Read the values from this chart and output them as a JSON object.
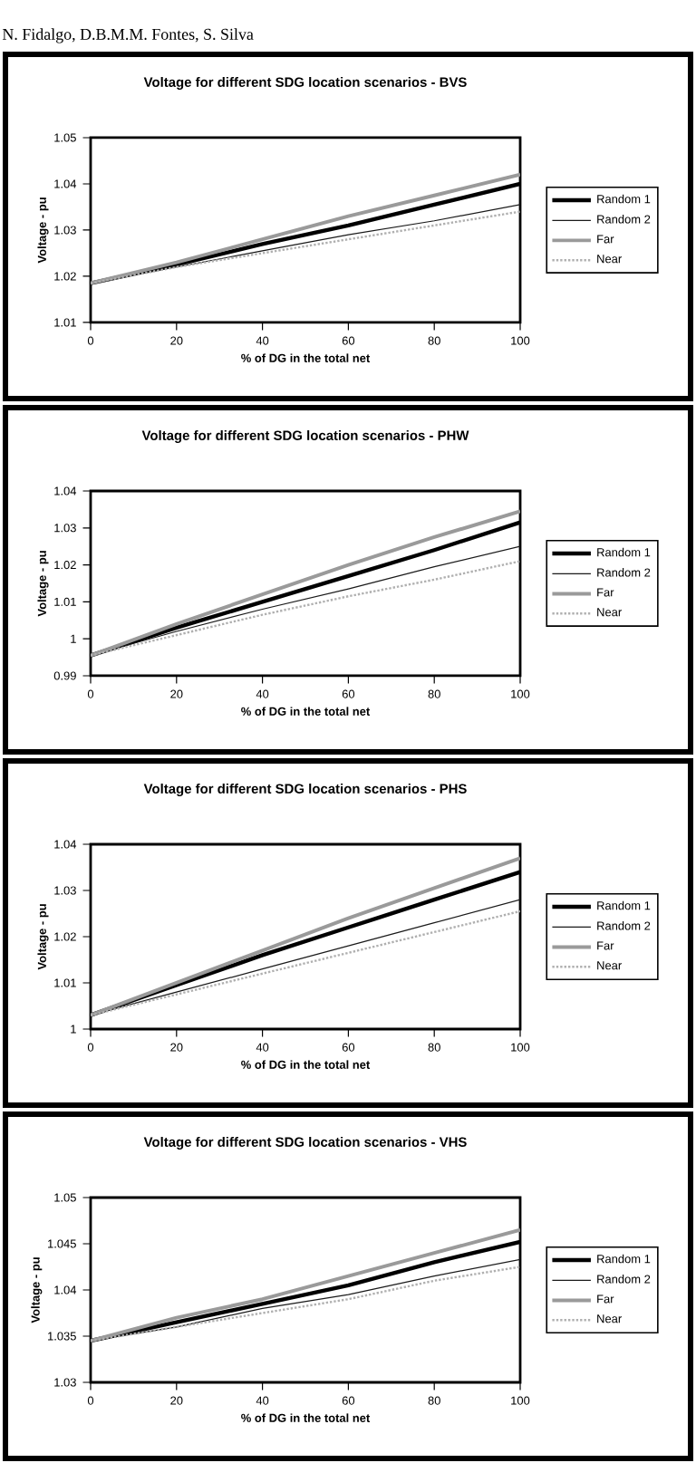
{
  "chart_data": [
    {
      "type": "line",
      "title": "Voltage for different SDG location scenarios - BVS",
      "xlabel": "% of DG in the total net",
      "ylabel": "Voltage - pu",
      "annotations": [
        "N. Fidalgo, D.B.M.M. Fontes, S. Silva"
      ],
      "x": [
        0,
        20,
        40,
        60,
        80,
        100
      ],
      "xlim": [
        0,
        100
      ],
      "xticks": [
        0,
        20,
        40,
        60,
        80,
        100
      ],
      "ylim": [
        1.01,
        1.05
      ],
      "yticks": [
        1.01,
        1.02,
        1.03,
        1.04,
        1.05
      ],
      "legend": "right",
      "series": [
        {
          "name": "Random 1",
          "color": "#000000",
          "values": [
            1.0185,
            1.0225,
            1.027,
            1.031,
            1.0355,
            1.04
          ]
        },
        {
          "name": "Random 2",
          "color": "#1a1a1a",
          "values": [
            1.0185,
            1.022,
            1.0255,
            1.029,
            1.032,
            1.0355
          ]
        },
        {
          "name": "Far",
          "color": "#9a9a9a",
          "values": [
            1.0185,
            1.023,
            1.028,
            1.033,
            1.0375,
            1.042
          ]
        },
        {
          "name": "Near",
          "color": "#b0b0b0",
          "line_style": "dotted",
          "values": [
            1.0185,
            1.022,
            1.025,
            1.028,
            1.031,
            1.034
          ]
        }
      ]
    },
    {
      "type": "line",
      "title": "Voltage for different SDG location scenarios - PHW",
      "xlabel": "% of DG in the total net",
      "ylabel": "Voltage - pu",
      "x": [
        0,
        20,
        40,
        60,
        80,
        100
      ],
      "xlim": [
        0,
        100
      ],
      "xticks": [
        0,
        20,
        40,
        60,
        80,
        100
      ],
      "ylim": [
        0.99,
        1.04
      ],
      "yticks": [
        0.99,
        1,
        1.01,
        1.02,
        1.03,
        1.04
      ],
      "legend": "right",
      "series": [
        {
          "name": "Random 1",
          "color": "#000000",
          "values": [
            0.9955,
            1.003,
            1.01,
            1.017,
            1.024,
            1.0315
          ]
        },
        {
          "name": "Random 2",
          "color": "#1a1a1a",
          "values": [
            0.9955,
            1.002,
            1.008,
            1.0135,
            1.0195,
            1.025
          ]
        },
        {
          "name": "Far",
          "color": "#9a9a9a",
          "values": [
            0.9955,
            1.004,
            1.012,
            1.02,
            1.0275,
            1.0345
          ]
        },
        {
          "name": "Near",
          "color": "#b0b0b0",
          "line_style": "dotted",
          "values": [
            0.9955,
            1.001,
            1.0065,
            1.0115,
            1.016,
            1.021
          ]
        }
      ]
    },
    {
      "type": "line",
      "title": "Voltage for different SDG location scenarios - PHS",
      "xlabel": "% of DG in the total net",
      "ylabel": "Voltage - pu",
      "x": [
        0,
        20,
        40,
        60,
        80,
        100
      ],
      "xlim": [
        0,
        100
      ],
      "xticks": [
        0,
        20,
        40,
        60,
        80,
        100
      ],
      "ylim": [
        1,
        1.04
      ],
      "yticks": [
        1,
        1.01,
        1.02,
        1.03,
        1.04
      ],
      "legend": "right",
      "series": [
        {
          "name": "Random 1",
          "color": "#000000",
          "values": [
            1.003,
            1.0095,
            1.016,
            1.022,
            1.028,
            1.034
          ]
        },
        {
          "name": "Random 2",
          "color": "#1a1a1a",
          "values": [
            1.003,
            1.008,
            1.013,
            1.018,
            1.023,
            1.028
          ]
        },
        {
          "name": "Far",
          "color": "#9a9a9a",
          "values": [
            1.003,
            1.01,
            1.017,
            1.024,
            1.0305,
            1.037
          ]
        },
        {
          "name": "Near",
          "color": "#b0b0b0",
          "line_style": "dotted",
          "values": [
            1.003,
            1.0075,
            1.012,
            1.0165,
            1.021,
            1.0255
          ]
        }
      ]
    },
    {
      "type": "line",
      "title": "Voltage for different SDG location scenarios - VHS",
      "xlabel": "% of DG in the total net",
      "ylabel": "Voltage - pu",
      "x": [
        0,
        20,
        40,
        60,
        80,
        100
      ],
      "xlim": [
        0,
        100
      ],
      "xticks": [
        0,
        20,
        40,
        60,
        80,
        100
      ],
      "ylim": [
        1.03,
        1.05
      ],
      "yticks": [
        1.03,
        1.035,
        1.04,
        1.045,
        1.05
      ],
      "legend": "right",
      "series": [
        {
          "name": "Random 1",
          "color": "#000000",
          "values": [
            1.0345,
            1.0365,
            1.0385,
            1.0405,
            1.043,
            1.0452
          ]
        },
        {
          "name": "Random 2",
          "color": "#1a1a1a",
          "values": [
            1.0345,
            1.036,
            1.038,
            1.0395,
            1.0415,
            1.0433
          ]
        },
        {
          "name": "Far",
          "color": "#9a9a9a",
          "values": [
            1.0345,
            1.037,
            1.039,
            1.0415,
            1.044,
            1.0465
          ]
        },
        {
          "name": "Near",
          "color": "#b0b0b0",
          "line_style": "dotted",
          "values": [
            1.0345,
            1.036,
            1.0375,
            1.039,
            1.041,
            1.0425
          ]
        }
      ]
    }
  ]
}
